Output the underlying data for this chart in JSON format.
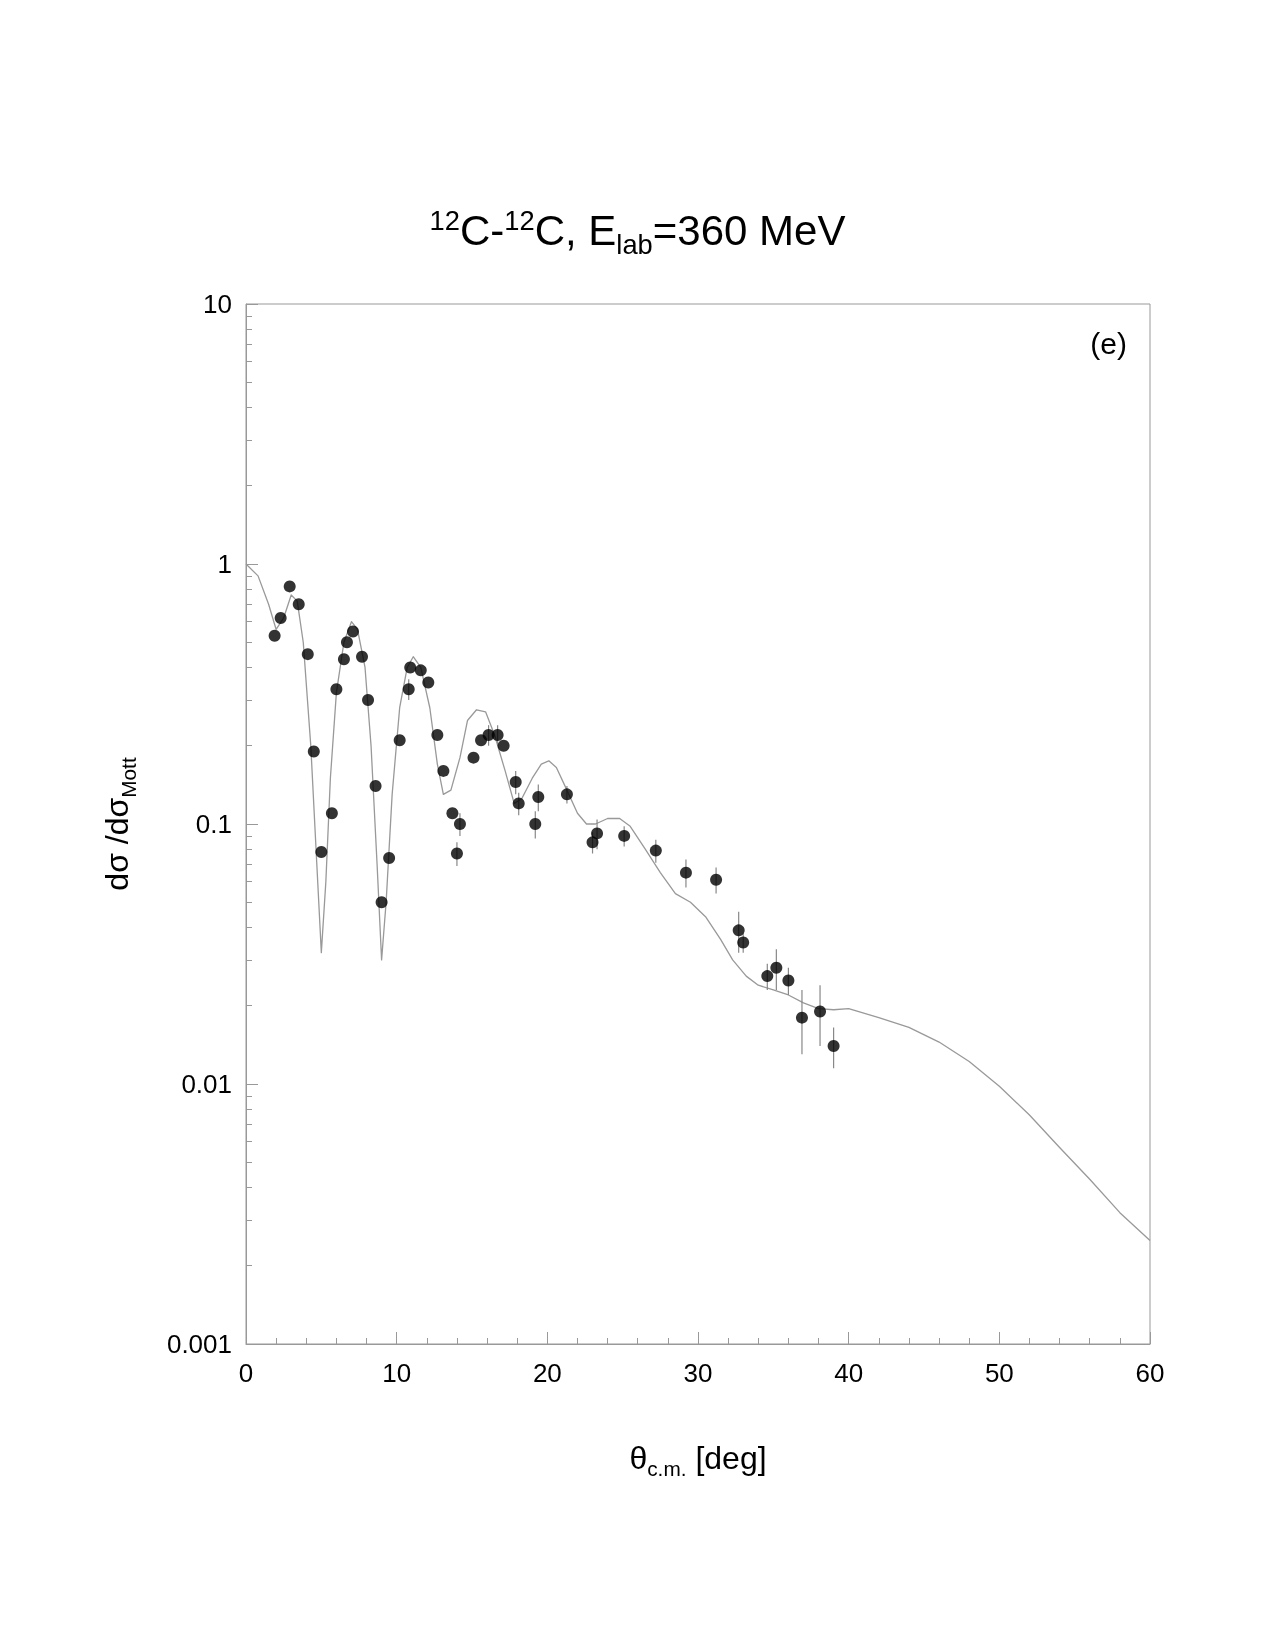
{
  "chart_data": {
    "type": "scatter",
    "title": "$^{12}$C-$^{12}$C, E$_{lab}$=360 MeV",
    "xlabel": "θ$_{c.m.}$ [deg]",
    "ylabel": "dσ /dσ$_{Mott}$",
    "annotations": [
      "(e)"
    ],
    "log": "y",
    "grid": false,
    "marker": "circle",
    "xlim": [
      0,
      60
    ],
    "xticks": [
      0,
      10,
      20,
      30,
      40,
      50,
      60
    ],
    "ylim": [
      0.001,
      10
    ],
    "yticks": [
      0.001,
      0.01,
      0.1,
      1,
      10
    ],
    "series": [
      {
        "color": "#000000",
        "x": [
          1.9,
          2.3,
          2.9,
          3.5,
          4.1,
          4.5,
          5.0,
          5.7,
          6.0,
          6.5,
          6.7,
          7.1,
          7.7,
          8.1,
          8.6,
          9.0,
          9.5,
          10.2,
          10.8,
          10.9,
          11.6,
          12.1,
          12.7,
          13.1,
          13.7,
          14.0,
          14.2,
          15.1,
          15.6,
          16.1,
          16.7,
          17.1,
          17.9,
          18.1,
          19.2,
          19.4,
          21.3,
          23.0,
          23.3,
          25.1,
          27.2,
          29.2,
          31.2,
          32.7,
          33.0,
          34.6,
          35.2,
          36.0,
          36.9,
          38.1,
          39.0
        ],
        "values": [
          0.53,
          0.62,
          0.82,
          0.7,
          0.45,
          0.19,
          0.078,
          0.11,
          0.33,
          0.43,
          0.5,
          0.55,
          0.44,
          0.3,
          0.14,
          0.05,
          0.074,
          0.21,
          0.33,
          0.4,
          0.39,
          0.35,
          0.22,
          0.16,
          0.11,
          0.077,
          0.1,
          0.18,
          0.21,
          0.22,
          0.22,
          0.2,
          0.145,
          0.12,
          0.1,
          0.127,
          0.13,
          0.085,
          0.092,
          0.09,
          0.079,
          0.065,
          0.061,
          0.039,
          0.035,
          0.026,
          0.028,
          0.025,
          0.018,
          0.019,
          0.014
        ],
        "errors": [
          null,
          null,
          null,
          null,
          null,
          null,
          null,
          null,
          null,
          null,
          null,
          null,
          null,
          null,
          null,
          null,
          null,
          null,
          0.03,
          null,
          null,
          null,
          null,
          null,
          null,
          0.008,
          0.01,
          null,
          null,
          0.02,
          0.02,
          null,
          0.015,
          0.012,
          0.012,
          0.015,
          0.01,
          0.008,
          0.012,
          0.008,
          0.008,
          0.008,
          0.007,
          0.007,
          0.003,
          0.003,
          0.005,
          0.003,
          0.005,
          0.005,
          0.0025
        ]
      },
      {
        "type": "line",
        "color": "#999999",
        "marker": "none",
        "line_style": "solid",
        "x": [
          0,
          0.8,
          1.5,
          2.0,
          2.5,
          3.0,
          3.4,
          3.8,
          4.3,
          4.7,
          5.0,
          5.3,
          5.6,
          6.0,
          6.5,
          7.0,
          7.4,
          7.9,
          8.3,
          8.7,
          9.0,
          9.3,
          9.7,
          10.2,
          10.7,
          11.1,
          11.6,
          12.2,
          12.7,
          13.1,
          13.6,
          14.2,
          14.7,
          15.3,
          15.9,
          16.5,
          17.2,
          17.8,
          18.3,
          19.0,
          19.6,
          20.1,
          20.6,
          21.3,
          22.0,
          22.6,
          23.2,
          24.0,
          24.8,
          25.5,
          26.5,
          27.5,
          28.5,
          29.5,
          30.5,
          31.5,
          32.3,
          33.2,
          34.0,
          35.0,
          36.0,
          37.0,
          38.0,
          39.0,
          40.0,
          42,
          44,
          46,
          48,
          50,
          52,
          54,
          56,
          58,
          60
        ],
        "values": [
          1,
          0.9,
          0.7,
          0.56,
          0.62,
          0.76,
          0.72,
          0.5,
          0.2,
          0.07,
          0.032,
          0.06,
          0.15,
          0.32,
          0.5,
          0.6,
          0.56,
          0.4,
          0.2,
          0.07,
          0.03,
          0.05,
          0.13,
          0.28,
          0.4,
          0.44,
          0.4,
          0.28,
          0.17,
          0.13,
          0.135,
          0.18,
          0.25,
          0.275,
          0.27,
          0.22,
          0.16,
          0.12,
          0.125,
          0.15,
          0.17,
          0.175,
          0.165,
          0.135,
          0.11,
          0.1,
          0.1,
          0.105,
          0.105,
          0.098,
          0.08,
          0.065,
          0.054,
          0.05,
          0.044,
          0.036,
          0.03,
          0.026,
          0.024,
          0.023,
          0.022,
          0.0205,
          0.0195,
          0.0193,
          0.0195,
          0.018,
          0.0165,
          0.0145,
          0.0122,
          0.0098,
          0.0076,
          0.0057,
          0.0043,
          0.0032,
          0.0025
        ]
      }
    ]
  }
}
